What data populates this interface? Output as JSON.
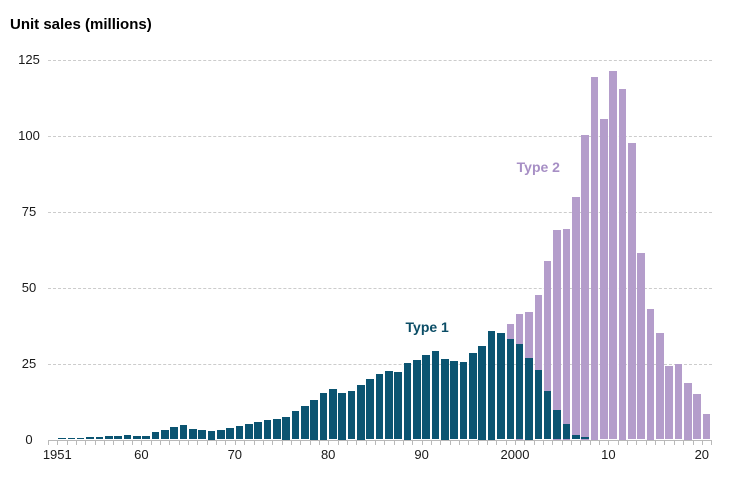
{
  "title": "Unit sales (millions)",
  "chart_data": {
    "type": "bar",
    "title": "Unit sales (millions)",
    "ylabel": "Unit sales (millions)",
    "xlabel": "",
    "ylim": [
      0,
      125
    ],
    "grid": "horizontal-dashed",
    "legend_position": "inline-annotations",
    "years": [
      1951,
      1952,
      1953,
      1954,
      1955,
      1956,
      1957,
      1958,
      1959,
      1960,
      1961,
      1962,
      1963,
      1964,
      1965,
      1966,
      1967,
      1968,
      1969,
      1970,
      1971,
      1972,
      1973,
      1974,
      1975,
      1976,
      1977,
      1978,
      1979,
      1980,
      1981,
      1982,
      1983,
      1984,
      1985,
      1986,
      1987,
      1988,
      1989,
      1990,
      1991,
      1992,
      1993,
      1994,
      1995,
      1996,
      1997,
      1998,
      1999,
      2000,
      2001,
      2002,
      2003,
      2004,
      2005,
      2006,
      2007,
      2008,
      2009,
      2010,
      2011,
      2012,
      2013,
      2014,
      2015,
      2016,
      2017,
      2018,
      2019,
      2020
    ],
    "series": [
      {
        "name": "Type 1",
        "color": "#0b5471",
        "label_color": "#0b4d66",
        "values": [
          0.4,
          0.6,
          0.6,
          0.8,
          0.9,
          1.1,
          1.3,
          1.6,
          1.3,
          1.3,
          2.4,
          3.0,
          4.1,
          4.9,
          3.5,
          3.0,
          2.8,
          3.0,
          3.7,
          4.4,
          5.2,
          5.9,
          6.3,
          6.8,
          7.4,
          9.3,
          11.0,
          13.0,
          15.3,
          16.6,
          15.3,
          16.1,
          18.1,
          20.0,
          21.7,
          22.6,
          22.1,
          25.2,
          26.1,
          27.8,
          29.2,
          26.5,
          25.9,
          25.6,
          28.6,
          30.8,
          35.9,
          35.2,
          33.0,
          31.4,
          27.0,
          23.0,
          16.1,
          9.7,
          5.0,
          1.4,
          0.9,
          null,
          null,
          null,
          null,
          null,
          null,
          null,
          null,
          null,
          null,
          null,
          null,
          null
        ]
      },
      {
        "name": "Type 2",
        "color": "#b49dcb",
        "label_color": "#a78fc5",
        "values": [
          null,
          null,
          null,
          null,
          null,
          null,
          null,
          null,
          null,
          null,
          null,
          null,
          null,
          null,
          null,
          null,
          null,
          null,
          null,
          null,
          null,
          null,
          null,
          null,
          null,
          null,
          null,
          null,
          null,
          null,
          null,
          null,
          null,
          null,
          null,
          null,
          null,
          null,
          null,
          null,
          null,
          null,
          null,
          null,
          null,
          null,
          null,
          null,
          38.0,
          41.5,
          42.0,
          47.5,
          58.7,
          69.0,
          69.5,
          80.0,
          100.3,
          119.4,
          105.6,
          121.3,
          115.6,
          97.6,
          61.5,
          43.0,
          35.2,
          24.3,
          25.0,
          18.6,
          15.1,
          8.5
        ]
      }
    ],
    "ytick_values": [
      0,
      25,
      50,
      75,
      100,
      125
    ],
    "ytick_labels": [
      "0",
      "25",
      "50",
      "75",
      "100",
      "125"
    ],
    "xticks": [
      {
        "year": 1951,
        "label": "1951"
      },
      {
        "year": 1960,
        "label": "60"
      },
      {
        "year": 1970,
        "label": "70"
      },
      {
        "year": 1980,
        "label": "80"
      },
      {
        "year": 1990,
        "label": "90"
      },
      {
        "year": 2000,
        "label": "2000"
      },
      {
        "year": 2010,
        "label": "10"
      },
      {
        "year": 2020,
        "label": "20"
      }
    ],
    "annotations": [
      {
        "text": "Type 1",
        "year": 1990.1,
        "value": 37.0,
        "series": "Type 1"
      },
      {
        "text": "Type 2",
        "year": 2002.0,
        "value": 89.8,
        "series": "Type 2"
      }
    ],
    "colors": {
      "gridline": "#cccccc",
      "axis": "#b9b9b9",
      "tick_text": "#1a1a1a",
      "background": "#ffffff"
    }
  }
}
